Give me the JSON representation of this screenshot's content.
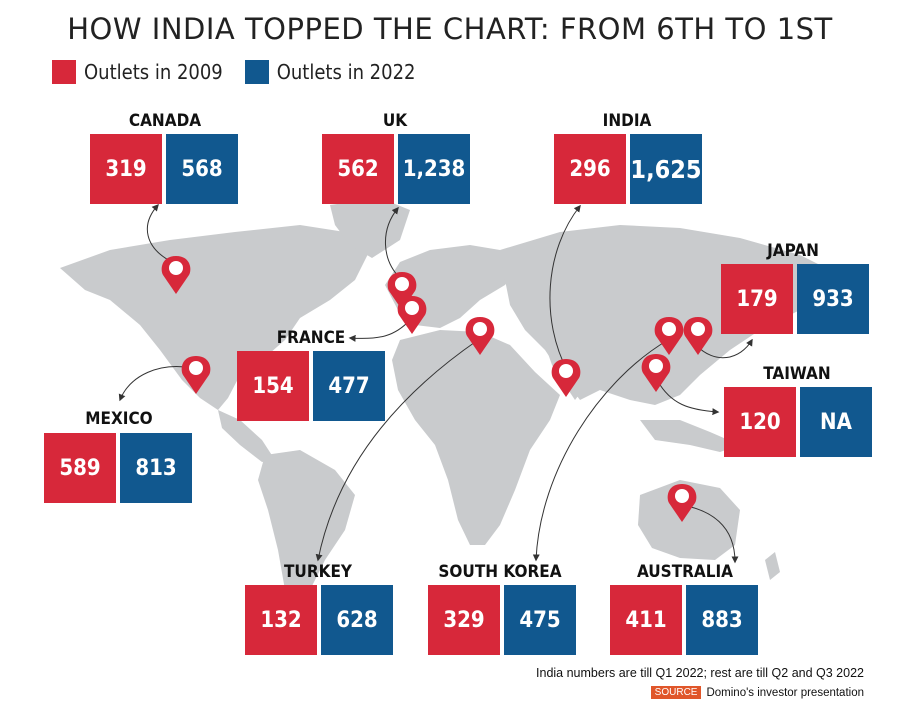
{
  "title": "HOW INDIA TOPPED THE CHART: FROM 6TH TO 1ST",
  "legend": [
    {
      "label": "Outlets in 2009",
      "color": "#d7283a"
    },
    {
      "label": "Outlets in 2022",
      "color": "#11588f"
    }
  ],
  "countries": {
    "canada": {
      "name": "CANADA",
      "v2009": "319",
      "v2022": "568"
    },
    "uk": {
      "name": "UK",
      "v2009": "562",
      "v2022": "1,238"
    },
    "india": {
      "name": "INDIA",
      "v2009": "296",
      "v2022": "1,625"
    },
    "japan": {
      "name": "JAPAN",
      "v2009": "179",
      "v2022": "933"
    },
    "france": {
      "name": "FRANCE",
      "v2009": "154",
      "v2022": "477"
    },
    "taiwan": {
      "name": "TAIWAN",
      "v2009": "120",
      "v2022": "NA"
    },
    "mexico": {
      "name": "MEXICO",
      "v2009": "589",
      "v2022": "813"
    },
    "turkey": {
      "name": "TURKEY",
      "v2009": "132",
      "v2022": "628"
    },
    "south_korea": {
      "name": "SOUTH KOREA",
      "v2009": "329",
      "v2022": "475"
    },
    "australia": {
      "name": "AUSTRALIA",
      "v2009": "411",
      "v2022": "883"
    }
  },
  "footnote": "India numbers are till Q1 2022; rest are till Q2 and Q3 2022",
  "source": {
    "tag": "SOURCE",
    "text": "Domino's investor presentation"
  },
  "colors": {
    "red": "#d7283a",
    "blue": "#11588f",
    "land": "#c9cbcd",
    "pin": "#d7283a"
  }
}
